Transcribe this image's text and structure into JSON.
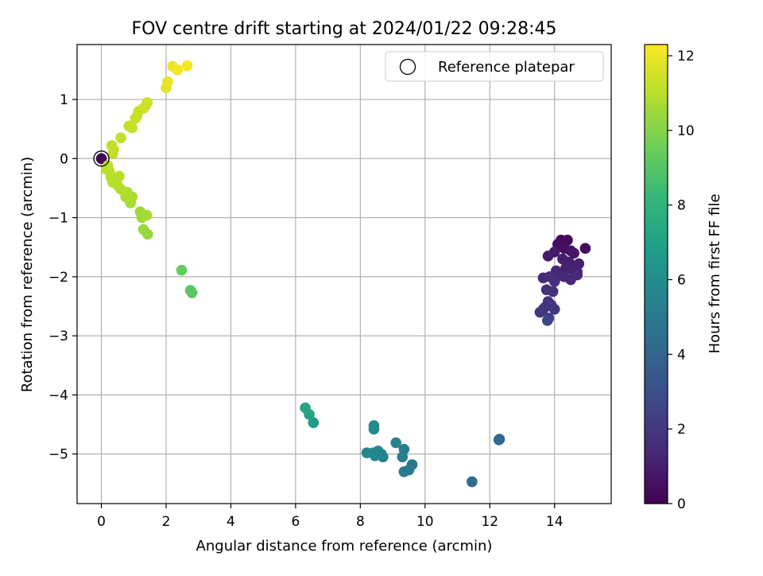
{
  "chart_data": {
    "type": "scatter",
    "title": "FOV centre drift starting at 2024/01/22 09:28:45",
    "xlabel": "Angular distance from reference (arcmin)",
    "ylabel": "Rotation from reference (arcmin)",
    "xlim": [
      -0.75,
      15.75
    ],
    "ylim": [
      -5.84,
      1.93
    ],
    "xticks": [
      0,
      2,
      4,
      6,
      8,
      10,
      12,
      14
    ],
    "xtick_labels": [
      "0",
      "2",
      "4",
      "6",
      "8",
      "10",
      "12",
      "14"
    ],
    "yticks": [
      1,
      0,
      -1,
      -2,
      -3,
      -4,
      -5
    ],
    "ytick_labels": [
      "1",
      "0",
      "−1",
      "−2",
      "−3",
      "−4",
      "−5"
    ],
    "grid": true,
    "legend": {
      "placement": "top-right",
      "entries": [
        {
          "label": "Reference platepar",
          "marker": "open-circle"
        }
      ]
    },
    "reference_point": {
      "x": 0,
      "y": 0
    },
    "colorbar": {
      "label": "Hours from first FF file",
      "range": [
        0,
        12.3
      ],
      "ticks": [
        0,
        2,
        4,
        6,
        8,
        10,
        12
      ],
      "tick_labels": [
        "0",
        "2",
        "4",
        "6",
        "8",
        "10",
        "12"
      ],
      "colormap": "viridis",
      "stops": [
        "#440154",
        "#482878",
        "#3e4989",
        "#31688e",
        "#26828e",
        "#1f9e89",
        "#35b779",
        "#6ece58",
        "#b5de2b",
        "#fde725"
      ]
    },
    "series": [
      {
        "points": [
          {
            "x": 0.0,
            "y": 0.0,
            "c": 0.0
          },
          {
            "x": 14.2,
            "y": -1.38,
            "c": 0.2
          },
          {
            "x": 14.4,
            "y": -1.38,
            "c": 0.3
          },
          {
            "x": 14.1,
            "y": -1.45,
            "c": 0.4
          },
          {
            "x": 14.3,
            "y": -1.52,
            "c": 0.5
          },
          {
            "x": 14.5,
            "y": -1.56,
            "c": 0.6
          },
          {
            "x": 14.6,
            "y": -1.6,
            "c": 0.7
          },
          {
            "x": 14.0,
            "y": -1.58,
            "c": 0.8
          },
          {
            "x": 13.8,
            "y": -1.65,
            "c": 0.9
          },
          {
            "x": 14.25,
            "y": -1.7,
            "c": 1.0
          },
          {
            "x": 14.45,
            "y": -1.75,
            "c": 1.0
          },
          {
            "x": 14.75,
            "y": -1.78,
            "c": 1.1
          },
          {
            "x": 14.35,
            "y": -1.85,
            "c": 1.1
          },
          {
            "x": 14.55,
            "y": -1.88,
            "c": 1.2
          },
          {
            "x": 14.7,
            "y": -1.92,
            "c": 1.2
          },
          {
            "x": 14.05,
            "y": -1.9,
            "c": 1.3
          },
          {
            "x": 14.15,
            "y": -1.98,
            "c": 1.3
          },
          {
            "x": 14.3,
            "y": -2.0,
            "c": 1.4
          },
          {
            "x": 14.5,
            "y": -2.05,
            "c": 1.4
          },
          {
            "x": 14.7,
            "y": -1.97,
            "c": 1.5
          },
          {
            "x": 13.65,
            "y": -2.02,
            "c": 1.5
          },
          {
            "x": 13.85,
            "y": -2.0,
            "c": 1.6
          },
          {
            "x": 14.0,
            "y": -2.08,
            "c": 1.6
          },
          {
            "x": 13.75,
            "y": -2.22,
            "c": 1.7
          },
          {
            "x": 13.95,
            "y": -2.25,
            "c": 1.7
          },
          {
            "x": 13.8,
            "y": -2.42,
            "c": 1.8
          },
          {
            "x": 13.7,
            "y": -2.52,
            "c": 1.8
          },
          {
            "x": 13.9,
            "y": -2.48,
            "c": 1.9
          },
          {
            "x": 14.0,
            "y": -2.55,
            "c": 1.9
          },
          {
            "x": 13.55,
            "y": -2.6,
            "c": 2.0
          },
          {
            "x": 13.65,
            "y": -2.55,
            "c": 2.0
          },
          {
            "x": 13.82,
            "y": -2.7,
            "c": 2.2
          },
          {
            "x": 13.78,
            "y": -2.74,
            "c": 2.6
          },
          {
            "x": 14.95,
            "y": -1.52,
            "c": 0.4
          },
          {
            "x": 12.3,
            "y": -4.75,
            "c": 3.9
          },
          {
            "x": 12.28,
            "y": -4.76,
            "c": 4.0
          },
          {
            "x": 11.45,
            "y": -5.47,
            "c": 4.3
          },
          {
            "x": 9.6,
            "y": -5.18,
            "c": 4.9
          },
          {
            "x": 9.5,
            "y": -5.27,
            "c": 5.0
          },
          {
            "x": 9.35,
            "y": -5.3,
            "c": 5.1
          },
          {
            "x": 9.3,
            "y": -5.05,
            "c": 5.2
          },
          {
            "x": 9.35,
            "y": -4.92,
            "c": 5.3
          },
          {
            "x": 9.1,
            "y": -4.81,
            "c": 5.4
          },
          {
            "x": 8.7,
            "y": -5.05,
            "c": 5.5
          },
          {
            "x": 8.65,
            "y": -5.0,
            "c": 5.6
          },
          {
            "x": 8.55,
            "y": -4.95,
            "c": 5.6
          },
          {
            "x": 8.45,
            "y": -5.03,
            "c": 5.7
          },
          {
            "x": 8.4,
            "y": -4.98,
            "c": 5.8
          },
          {
            "x": 8.2,
            "y": -4.98,
            "c": 5.8
          },
          {
            "x": 8.42,
            "y": -4.58,
            "c": 5.9
          },
          {
            "x": 8.42,
            "y": -4.52,
            "c": 5.95
          },
          {
            "x": 6.55,
            "y": -4.47,
            "c": 6.8
          },
          {
            "x": 6.42,
            "y": -4.33,
            "c": 7.0
          },
          {
            "x": 6.3,
            "y": -4.22,
            "c": 7.2
          },
          {
            "x": 2.8,
            "y": -2.27,
            "c": 9.0
          },
          {
            "x": 2.75,
            "y": -2.23,
            "c": 9.1
          },
          {
            "x": 2.48,
            "y": -1.89,
            "c": 9.3
          },
          {
            "x": 1.43,
            "y": -1.28,
            "c": 10.3
          },
          {
            "x": 1.3,
            "y": -1.2,
            "c": 10.4
          },
          {
            "x": 1.25,
            "y": -1.0,
            "c": 10.5
          },
          {
            "x": 1.2,
            "y": -0.9,
            "c": 10.5
          },
          {
            "x": 1.4,
            "y": -0.96,
            "c": 10.6
          },
          {
            "x": 0.95,
            "y": -0.65,
            "c": 10.7
          },
          {
            "x": 0.9,
            "y": -0.75,
            "c": 10.7
          },
          {
            "x": 0.75,
            "y": -0.65,
            "c": 10.8
          },
          {
            "x": 0.8,
            "y": -0.57,
            "c": 10.8
          },
          {
            "x": 0.6,
            "y": -0.52,
            "c": 10.9
          },
          {
            "x": 0.5,
            "y": -0.45,
            "c": 10.9
          },
          {
            "x": 0.35,
            "y": -0.4,
            "c": 11.0
          },
          {
            "x": 0.3,
            "y": -0.32,
            "c": 11.0
          },
          {
            "x": 0.55,
            "y": -0.3,
            "c": 11.0
          },
          {
            "x": 0.25,
            "y": -0.22,
            "c": 11.05
          },
          {
            "x": 0.15,
            "y": -0.18,
            "c": 11.05
          },
          {
            "x": 0.2,
            "y": -0.12,
            "c": 11.1
          },
          {
            "x": 0.35,
            "y": 0.08,
            "c": 11.1
          },
          {
            "x": 0.38,
            "y": 0.15,
            "c": 11.15
          },
          {
            "x": 0.32,
            "y": 0.22,
            "c": 11.15
          },
          {
            "x": 0.6,
            "y": 0.35,
            "c": 11.2
          },
          {
            "x": 0.85,
            "y": 0.55,
            "c": 11.25
          },
          {
            "x": 0.95,
            "y": 0.52,
            "c": 11.25
          },
          {
            "x": 1.05,
            "y": 0.68,
            "c": 11.3
          },
          {
            "x": 1.1,
            "y": 0.72,
            "c": 11.3
          },
          {
            "x": 1.15,
            "y": 0.8,
            "c": 11.35
          },
          {
            "x": 1.3,
            "y": 0.85,
            "c": 11.35
          },
          {
            "x": 1.35,
            "y": 0.88,
            "c": 11.4
          },
          {
            "x": 1.42,
            "y": 0.95,
            "c": 11.4
          },
          {
            "x": 2.0,
            "y": 1.2,
            "c": 11.8
          },
          {
            "x": 2.05,
            "y": 1.3,
            "c": 11.9
          },
          {
            "x": 2.2,
            "y": 1.56,
            "c": 12.0
          },
          {
            "x": 2.35,
            "y": 1.5,
            "c": 12.1
          },
          {
            "x": 2.65,
            "y": 1.57,
            "c": 12.2
          }
        ]
      }
    ]
  }
}
